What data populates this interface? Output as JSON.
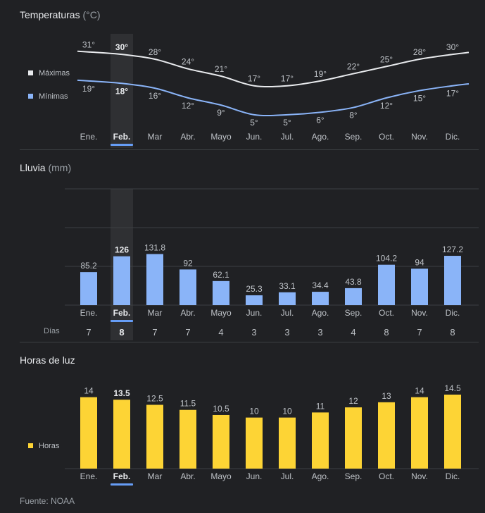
{
  "months": [
    "Ene.",
    "Feb.",
    "Mar",
    "Abr.",
    "Mayo",
    "Jun.",
    "Jul.",
    "Ago.",
    "Sep.",
    "Oct.",
    "Nov.",
    "Dic."
  ],
  "selected_index": 1,
  "colors": {
    "background": "#202124",
    "text": "#bdc1c6",
    "muted": "#9aa0a6",
    "max_line": "#e8eaed",
    "min_line": "#8ab4f8",
    "rain_bar": "#8ab4f8",
    "sun_bar": "#fdd435",
    "highlight": "#2f3033",
    "selected_underline": "#669df6",
    "grid": "#3c4043"
  },
  "sections": {
    "temperature": {
      "title": "Temperaturas",
      "unit": "(°C)"
    },
    "rain": {
      "title": "Lluvia",
      "unit": "(mm)",
      "days_label": "Días"
    },
    "daylight": {
      "title": "Horas de luz"
    }
  },
  "footer": "Fuente: NOAA",
  "chart_data": [
    {
      "type": "line",
      "title": "Temperaturas (°C)",
      "categories": [
        "Ene.",
        "Feb.",
        "Mar",
        "Abr.",
        "Mayo",
        "Jun.",
        "Jul.",
        "Ago.",
        "Sep.",
        "Oct.",
        "Nov.",
        "Dic."
      ],
      "series": [
        {
          "name": "Máximas",
          "color": "#e8eaed",
          "values": [
            31,
            30,
            28,
            24,
            21,
            17,
            17,
            19,
            22,
            25,
            28,
            30
          ]
        },
        {
          "name": "Mínimas",
          "color": "#8ab4f8",
          "values": [
            19,
            18,
            16,
            12,
            9,
            5,
            5,
            6,
            8,
            12,
            15,
            17
          ]
        }
      ],
      "value_suffix": "°",
      "legend": "left",
      "ylim": [
        0,
        35
      ]
    },
    {
      "type": "bar",
      "title": "Lluvia (mm)",
      "categories": [
        "Ene.",
        "Feb.",
        "Mar",
        "Abr.",
        "Mayo",
        "Jun.",
        "Jul.",
        "Ago.",
        "Sep.",
        "Oct.",
        "Nov.",
        "Dic."
      ],
      "values": [
        85.2,
        126,
        131.8,
        92,
        62.1,
        25.3,
        33.1,
        34.4,
        43.8,
        104.2,
        94,
        127.2
      ],
      "value_labels": [
        "85.2",
        "126",
        "131.8",
        "92",
        "62.1",
        "25.3",
        "33.1",
        "34.4",
        "43.8",
        "104.2",
        "94",
        "127.2"
      ],
      "days": [
        "7",
        "8",
        "7",
        "7",
        "4",
        "3",
        "3",
        "3",
        "4",
        "8",
        "7",
        "8"
      ],
      "ylim": [
        0,
        300
      ],
      "grid": true
    },
    {
      "type": "bar",
      "title": "Horas de luz",
      "categories": [
        "Ene.",
        "Feb.",
        "Mar",
        "Abr.",
        "Mayo",
        "Jun.",
        "Jul.",
        "Ago.",
        "Sep.",
        "Oct.",
        "Nov.",
        "Dic."
      ],
      "series": [
        {
          "name": "Horas",
          "color": "#fdd435",
          "values": [
            14,
            13.5,
            12.5,
            11.5,
            10.5,
            10,
            10,
            11,
            12,
            13,
            14,
            14.5
          ]
        }
      ],
      "value_labels": [
        "14",
        "13.5",
        "12.5",
        "11.5",
        "10.5",
        "10",
        "10",
        "11",
        "12",
        "13",
        "14",
        "14.5"
      ],
      "legend": "left",
      "ylim": [
        0,
        15
      ]
    }
  ]
}
